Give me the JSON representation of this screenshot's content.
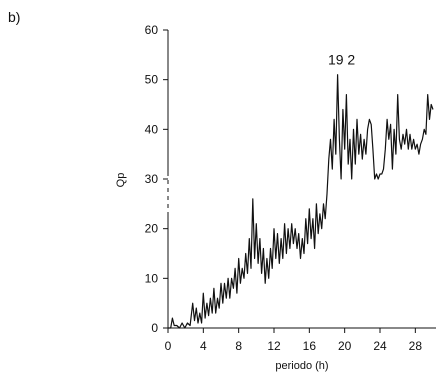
{
  "panel_label": "b)",
  "chart_data": {
    "type": "line",
    "title": "",
    "xlabel": "periodo (h)",
    "ylabel": "Qp",
    "xlim": [
      0,
      30
    ],
    "ylim": [
      0,
      60
    ],
    "xticks": [
      0,
      4,
      8,
      12,
      16,
      20,
      24,
      28
    ],
    "yticks": [
      0,
      10,
      20,
      30,
      40,
      50,
      60
    ],
    "grid": false,
    "annotations": [
      {
        "text": "19 2",
        "x": 19.2,
        "y": 51
      }
    ],
    "series": [
      {
        "color": "#111111",
        "points": [
          [
            0,
            0
          ],
          [
            0.3,
            0
          ],
          [
            0.5,
            2
          ],
          [
            0.7,
            0.5
          ],
          [
            1,
            0.5
          ],
          [
            1.3,
            0
          ],
          [
            1.6,
            1
          ],
          [
            1.9,
            0
          ],
          [
            2.2,
            1
          ],
          [
            2.5,
            0.5
          ],
          [
            2.8,
            5
          ],
          [
            3,
            1.5
          ],
          [
            3.2,
            4
          ],
          [
            3.4,
            1
          ],
          [
            3.6,
            3
          ],
          [
            3.8,
            1
          ],
          [
            4,
            7
          ],
          [
            4.2,
            2
          ],
          [
            4.4,
            5
          ],
          [
            4.6,
            2.5
          ],
          [
            4.8,
            6
          ],
          [
            5,
            3
          ],
          [
            5.2,
            8
          ],
          [
            5.4,
            3
          ],
          [
            5.6,
            6
          ],
          [
            5.8,
            4
          ],
          [
            6,
            9
          ],
          [
            6.2,
            5
          ],
          [
            6.4,
            9
          ],
          [
            6.6,
            6
          ],
          [
            6.8,
            10
          ],
          [
            7,
            6
          ],
          [
            7.2,
            10
          ],
          [
            7.4,
            8
          ],
          [
            7.6,
            12
          ],
          [
            7.8,
            7
          ],
          [
            8,
            14
          ],
          [
            8.2,
            9
          ],
          [
            8.4,
            12
          ],
          [
            8.6,
            10
          ],
          [
            8.8,
            15
          ],
          [
            9,
            11
          ],
          [
            9.2,
            18
          ],
          [
            9.4,
            12
          ],
          [
            9.6,
            26
          ],
          [
            9.8,
            14
          ],
          [
            10,
            21
          ],
          [
            10.2,
            13
          ],
          [
            10.4,
            18
          ],
          [
            10.6,
            11
          ],
          [
            10.8,
            16
          ],
          [
            11,
            9
          ],
          [
            11.2,
            14
          ],
          [
            11.4,
            10
          ],
          [
            11.6,
            16
          ],
          [
            11.8,
            12
          ],
          [
            12,
            20
          ],
          [
            12.2,
            14
          ],
          [
            12.4,
            19
          ],
          [
            12.6,
            13
          ],
          [
            12.8,
            18
          ],
          [
            13,
            14
          ],
          [
            13.2,
            21
          ],
          [
            13.4,
            15
          ],
          [
            13.6,
            20
          ],
          [
            13.8,
            16
          ],
          [
            14,
            21
          ],
          [
            14.2,
            17
          ],
          [
            14.4,
            20
          ],
          [
            14.6,
            16
          ],
          [
            14.8,
            19
          ],
          [
            15,
            14
          ],
          [
            15.2,
            18
          ],
          [
            15.4,
            15
          ],
          [
            15.6,
            22
          ],
          [
            15.8,
            17
          ],
          [
            16,
            24
          ],
          [
            16.2,
            18
          ],
          [
            16.4,
            22
          ],
          [
            16.6,
            16
          ],
          [
            16.8,
            25
          ],
          [
            17,
            19
          ],
          [
            17.2,
            23
          ],
          [
            17.4,
            20
          ],
          [
            17.6,
            25
          ],
          [
            17.8,
            22
          ],
          [
            18,
            27
          ],
          [
            18.2,
            34
          ],
          [
            18.4,
            38
          ],
          [
            18.6,
            32
          ],
          [
            18.8,
            42
          ],
          [
            19,
            35
          ],
          [
            19.2,
            51
          ],
          [
            19.4,
            38
          ],
          [
            19.6,
            30
          ],
          [
            19.8,
            44
          ],
          [
            20,
            36
          ],
          [
            20.2,
            47
          ],
          [
            20.4,
            33
          ],
          [
            20.6,
            38
          ],
          [
            20.8,
            30
          ],
          [
            21,
            40
          ],
          [
            21.2,
            33
          ],
          [
            21.4,
            42
          ],
          [
            21.6,
            35
          ],
          [
            21.8,
            39
          ],
          [
            22,
            34
          ],
          [
            22.2,
            38
          ],
          [
            22.4,
            35
          ],
          [
            22.6,
            40
          ],
          [
            22.8,
            42
          ],
          [
            23,
            41
          ],
          [
            23.2,
            36
          ],
          [
            23.4,
            30
          ],
          [
            23.6,
            31
          ],
          [
            23.8,
            30
          ],
          [
            24,
            31
          ],
          [
            24.2,
            31
          ],
          [
            24.4,
            32
          ],
          [
            24.6,
            36
          ],
          [
            24.8,
            42
          ],
          [
            25,
            38
          ],
          [
            25.2,
            41
          ],
          [
            25.4,
            32
          ],
          [
            25.6,
            40
          ],
          [
            25.8,
            35
          ],
          [
            26,
            47
          ],
          [
            26.2,
            38
          ],
          [
            26.4,
            36
          ],
          [
            26.6,
            39
          ],
          [
            26.8,
            37
          ],
          [
            27,
            40
          ],
          [
            27.2,
            36
          ],
          [
            27.4,
            39
          ],
          [
            27.6,
            36
          ],
          [
            27.8,
            38
          ],
          [
            28,
            36
          ],
          [
            28.2,
            37
          ],
          [
            28.4,
            35
          ],
          [
            28.6,
            37
          ],
          [
            28.8,
            38
          ],
          [
            29,
            40
          ],
          [
            29.2,
            39
          ],
          [
            29.4,
            47
          ],
          [
            29.6,
            42
          ],
          [
            29.8,
            45
          ],
          [
            30,
            44
          ]
        ]
      }
    ]
  }
}
